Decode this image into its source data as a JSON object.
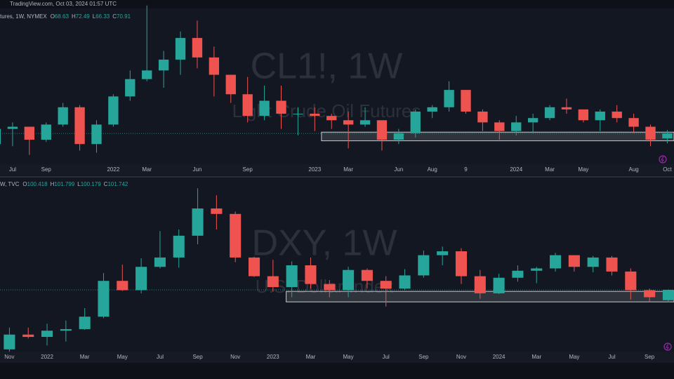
{
  "top_bar": "TradingView.com, Oct 03, 2024 01:57 UTC",
  "chart_data": [
    {
      "type": "candlestick",
      "title": "CL1!, 1W",
      "subtitle": "Light Crude Oil Futures",
      "legend": {
        "symbol": "tures, 1W, NYMEX",
        "o_label": "O",
        "open": 68.63,
        "h_label": "H",
        "high": 72.49,
        "l_label": "L",
        "low": 66.33,
        "c_label": "C",
        "close": 70.91
      },
      "up_color": "#26a69a",
      "down_color": "#ef5350",
      "xlim": [
        0.25,
        40.4
      ],
      "ylim": [
        57,
        128
      ],
      "xticks": [
        {
          "value": 1,
          "label": "Jul"
        },
        {
          "value": 3,
          "label": "Sep"
        },
        {
          "value": 7,
          "label": "2022"
        },
        {
          "value": 9,
          "label": "Mar"
        },
        {
          "value": 12,
          "label": "Jun"
        },
        {
          "value": 15,
          "label": "Sep"
        },
        {
          "value": 19,
          "label": "2023"
        },
        {
          "value": 21,
          "label": "Mar"
        },
        {
          "value": 24,
          "label": "Jun"
        },
        {
          "value": 26,
          "label": "Aug"
        },
        {
          "value": 28,
          "label": "9"
        },
        {
          "value": 31,
          "label": "2024"
        },
        {
          "value": 33,
          "label": "Mar"
        },
        {
          "value": 35,
          "label": "May"
        },
        {
          "value": 38,
          "label": "Aug"
        },
        {
          "value": 40,
          "label": "Oct"
        }
      ],
      "zone": {
        "x_start": 19.4,
        "low": 67.5,
        "high": 71.5
      },
      "open": [
        66,
        73,
        74,
        68,
        75,
        83,
        66,
        75,
        88,
        96,
        100,
        105,
        115,
        106,
        98,
        89,
        79,
        86,
        80,
        80,
        79,
        77,
        75,
        77,
        68,
        71,
        81,
        83,
        91,
        81,
        76,
        72,
        76,
        78,
        83,
        82,
        77,
        81,
        78,
        74,
        68.63
      ],
      "high": [
        76,
        76,
        74,
        76,
        85,
        84,
        77,
        89,
        100,
        130,
        109,
        118,
        123,
        111,
        98,
        97,
        93,
        93,
        83,
        83,
        80,
        81,
        83,
        77,
        73,
        82,
        84,
        95,
        91,
        82,
        77,
        79,
        80,
        84,
        87,
        82,
        82,
        84,
        80,
        75,
        72.49
      ],
      "low": [
        64,
        65,
        61,
        67,
        74,
        63,
        62,
        74,
        86,
        95,
        92,
        98,
        101,
        88,
        85,
        76,
        77,
        73,
        70,
        72,
        73,
        64,
        74,
        63,
        66,
        69,
        78,
        81,
        80,
        72,
        68,
        70,
        71,
        77,
        80,
        76,
        72,
        76,
        71,
        65,
        66.33
      ],
      "close": [
        73,
        74,
        68,
        75,
        83,
        66,
        75,
        88,
        96,
        100,
        105,
        115,
        106,
        98,
        89,
        79,
        86,
        80,
        80,
        79,
        77,
        75,
        77,
        68,
        71,
        81,
        83,
        91,
        81,
        76,
        72,
        76,
        78,
        83,
        82,
        77,
        81,
        78,
        74,
        68,
        70.91
      ]
    },
    {
      "type": "candlestick",
      "title": "DXY, 1W",
      "subtitle": "U.S. Dollar Index",
      "legend": {
        "symbol": "W, TVC",
        "o_label": "O",
        "open": 100.418,
        "h_label": "H",
        "high": 101.799,
        "l_label": "L",
        "low": 100.179,
        "c_label": "C",
        "close": 101.742
      },
      "up_color": "#26a69a",
      "down_color": "#ef5350",
      "xlim": [
        -0.5,
        35.3
      ],
      "ylim": [
        93.9,
        115.9
      ],
      "xticks": [
        {
          "value": 0,
          "label": "Nov"
        },
        {
          "value": 2,
          "label": "2022"
        },
        {
          "value": 4,
          "label": "Mar"
        },
        {
          "value": 6,
          "label": "May"
        },
        {
          "value": 8,
          "label": "Jul"
        },
        {
          "value": 10,
          "label": "Sep"
        },
        {
          "value": 12,
          "label": "Nov"
        },
        {
          "value": 14,
          "label": "2023"
        },
        {
          "value": 16,
          "label": "Mar"
        },
        {
          "value": 18,
          "label": "May"
        },
        {
          "value": 20,
          "label": "Jul"
        },
        {
          "value": 22,
          "label": "Sep"
        },
        {
          "value": 24,
          "label": "Nov"
        },
        {
          "value": 26,
          "label": "2024"
        },
        {
          "value": 28,
          "label": "Mar"
        },
        {
          "value": 30,
          "label": "May"
        },
        {
          "value": 32,
          "label": "Jul"
        },
        {
          "value": 34,
          "label": "Sep"
        }
      ],
      "zone": {
        "x_start": 14.7,
        "low": 100.2,
        "high": 101.55
      },
      "open": [
        94.1,
        96,
        95.7,
        96.5,
        96.7,
        98.3,
        102.9,
        101.7,
        104.7,
        105.9,
        108.7,
        112.2,
        111.5,
        105.9,
        103.5,
        102.1,
        104.9,
        102.5,
        101.7,
        104.3,
        102.9,
        101.9,
        103.6,
        106.2,
        106.7,
        103.5,
        101.3,
        103.3,
        104.2,
        104.5,
        106.2,
        104.7,
        105.9,
        104.1,
        101.7,
        100.418
      ],
      "high": [
        96.9,
        96.9,
        97.4,
        97.8,
        99.4,
        103.9,
        105,
        105.8,
        109.3,
        109.5,
        114.8,
        113.9,
        111.8,
        106,
        105.6,
        105.4,
        105.9,
        103,
        104.7,
        104.5,
        103.5,
        104.4,
        106.8,
        107.3,
        107.1,
        104.3,
        103.8,
        104.9,
        104.7,
        106.5,
        106.2,
        106.1,
        106.1,
        104.5,
        101.9,
        101.799
      ],
      "low": [
        93.8,
        95.5,
        94.6,
        95.1,
        96.6,
        98.1,
        101.6,
        101.3,
        104.5,
        104.6,
        107.6,
        109.5,
        105.3,
        103.4,
        101.5,
        100.8,
        101.9,
        100.8,
        100.8,
        101.9,
        99.6,
        101.7,
        103.3,
        104.9,
        102.5,
        100.6,
        101.2,
        102.8,
        102.6,
        104.1,
        104.1,
        104,
        103.6,
        100.5,
        100.2,
        100.179
      ],
      "close": [
        96,
        95.7,
        96.5,
        96.7,
        98.3,
        102.9,
        101.7,
        104.7,
        105.9,
        108.7,
        112.2,
        111.5,
        105.9,
        103.5,
        102.1,
        104.9,
        102.5,
        101.7,
        104.3,
        102.9,
        101.9,
        103.6,
        106.2,
        106.7,
        103.5,
        101.3,
        103.3,
        104.2,
        104.5,
        106.2,
        104.7,
        105.9,
        104.1,
        101.7,
        100.8,
        101.742
      ]
    }
  ]
}
